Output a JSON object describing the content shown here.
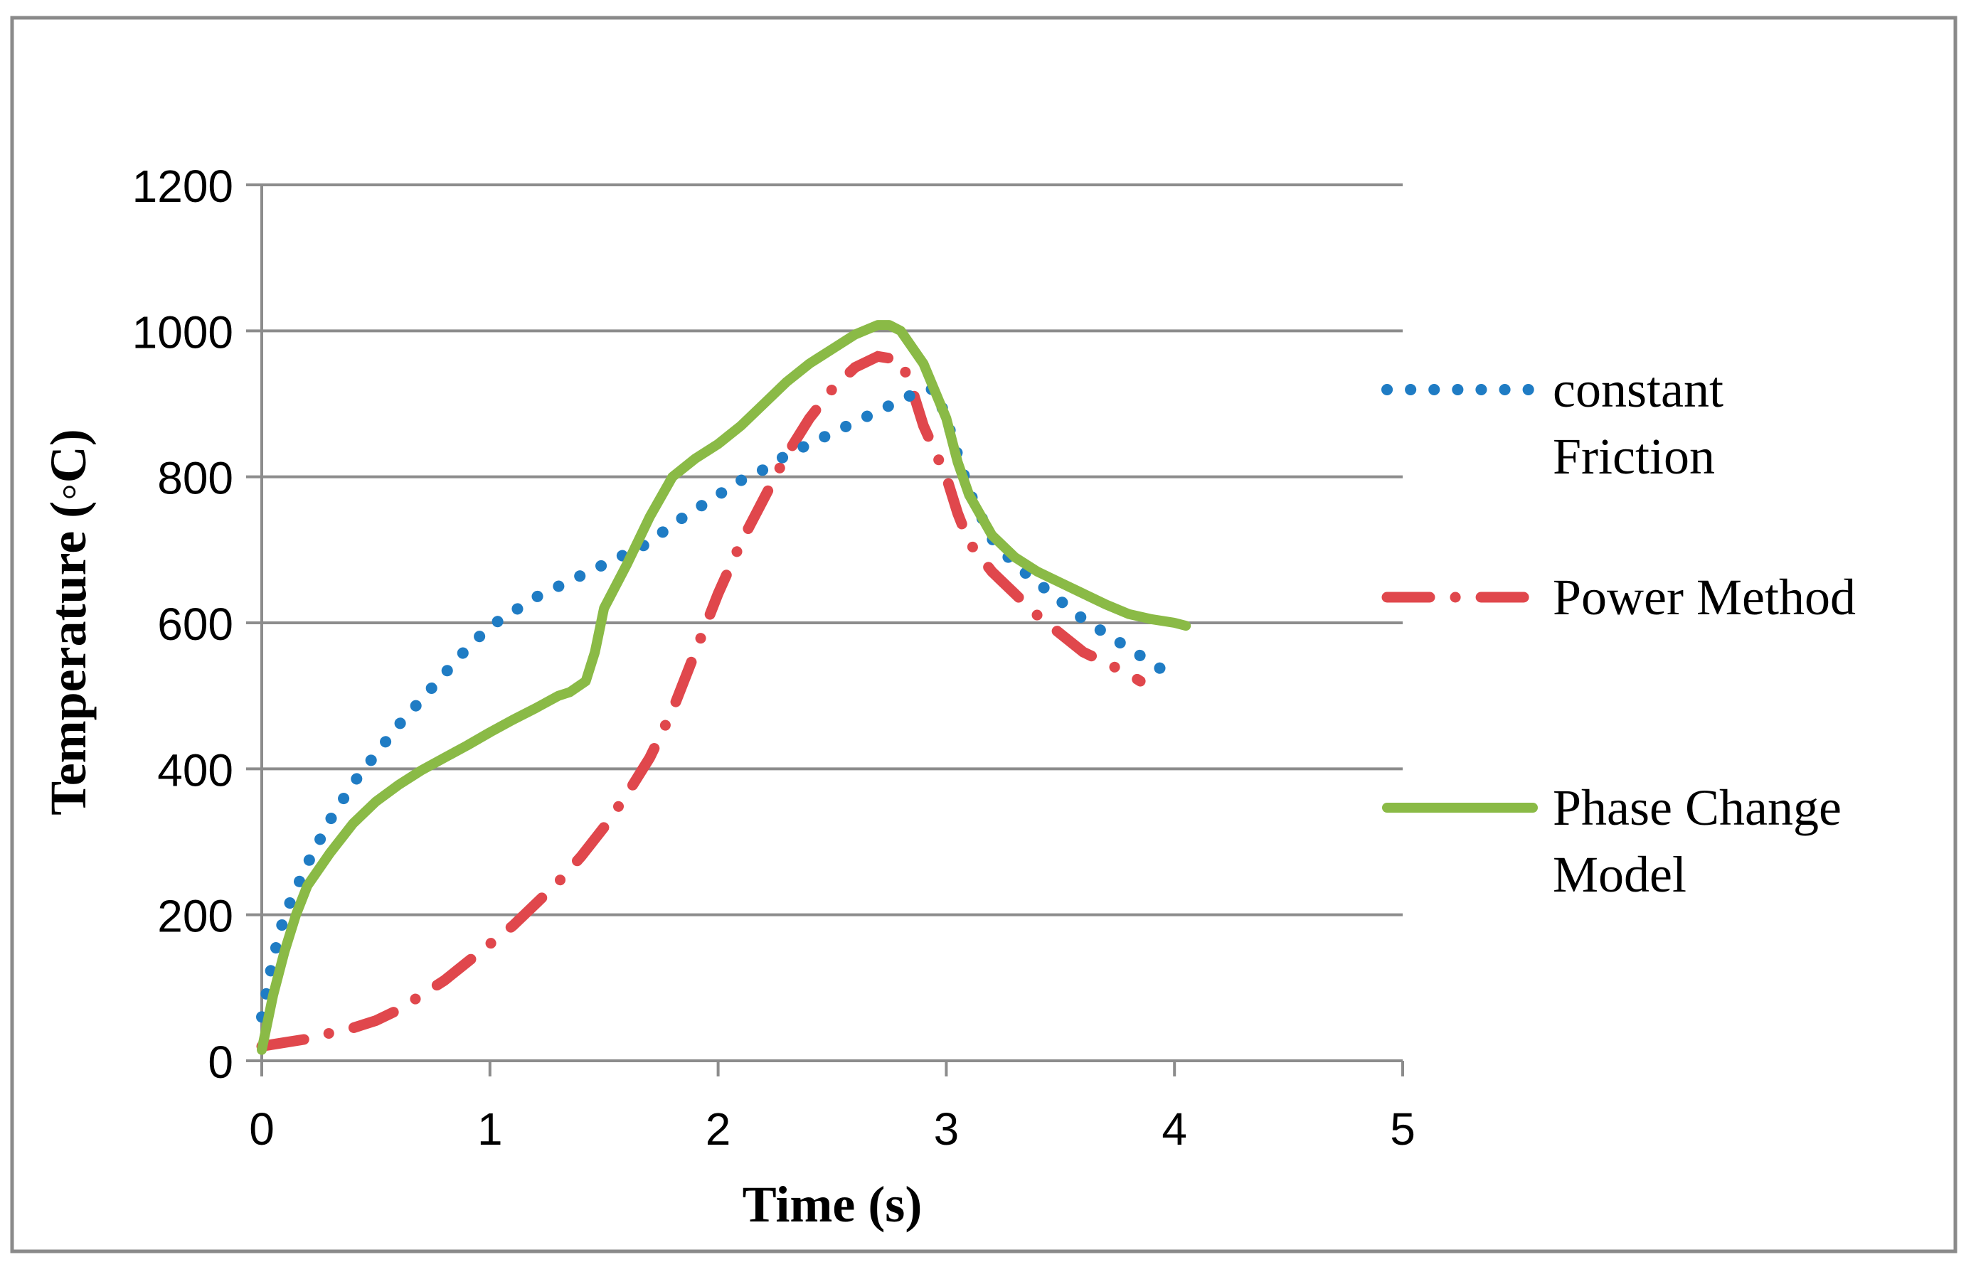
{
  "chart_data": {
    "type": "line",
    "title": "",
    "xlabel": "Time (s)",
    "ylabel": "Temperature (◦C)",
    "xlim": [
      0,
      5
    ],
    "ylim": [
      0,
      1200
    ],
    "xticks": [
      0,
      1,
      2,
      3,
      4,
      5
    ],
    "yticks": [
      0,
      200,
      400,
      600,
      800,
      1000,
      1200
    ],
    "grid": "horizontal",
    "legend_position": "right",
    "series": [
      {
        "name": "constant Friction",
        "legend_lines": [
          "constant",
          "Friction"
        ],
        "color": "#1f7cc4",
        "style": "dotted",
        "points": [
          [
            0,
            60
          ],
          [
            0.05,
            140
          ],
          [
            0.1,
            200
          ],
          [
            0.2,
            270
          ],
          [
            0.3,
            330
          ],
          [
            0.4,
            380
          ],
          [
            0.5,
            420
          ],
          [
            0.6,
            460
          ],
          [
            0.7,
            495
          ],
          [
            0.8,
            530
          ],
          [
            0.9,
            565
          ],
          [
            1.0,
            595
          ],
          [
            1.1,
            615
          ],
          [
            1.2,
            635
          ],
          [
            1.3,
            650
          ],
          [
            1.4,
            665
          ],
          [
            1.5,
            680
          ],
          [
            1.6,
            695
          ],
          [
            1.7,
            710
          ],
          [
            1.8,
            735
          ],
          [
            1.9,
            755
          ],
          [
            2.0,
            775
          ],
          [
            2.1,
            795
          ],
          [
            2.2,
            810
          ],
          [
            2.3,
            830
          ],
          [
            2.4,
            845
          ],
          [
            2.5,
            860
          ],
          [
            2.6,
            875
          ],
          [
            2.7,
            890
          ],
          [
            2.8,
            905
          ],
          [
            2.9,
            920
          ],
          [
            2.95,
            920
          ],
          [
            3.0,
            880
          ],
          [
            3.05,
            830
          ],
          [
            3.1,
            780
          ],
          [
            3.2,
            715
          ],
          [
            3.3,
            680
          ],
          [
            3.4,
            655
          ],
          [
            3.5,
            630
          ],
          [
            3.6,
            605
          ],
          [
            3.7,
            585
          ],
          [
            3.8,
            565
          ],
          [
            3.9,
            545
          ],
          [
            3.95,
            535
          ]
        ]
      },
      {
        "name": "Power Method",
        "legend_lines": [
          "Power Method"
        ],
        "color": "#e0474c",
        "style": "dash-dot",
        "points": [
          [
            0,
            20
          ],
          [
            0.1,
            25
          ],
          [
            0.2,
            30
          ],
          [
            0.3,
            38
          ],
          [
            0.4,
            45
          ],
          [
            0.5,
            55
          ],
          [
            0.6,
            70
          ],
          [
            0.7,
            90
          ],
          [
            0.8,
            110
          ],
          [
            0.9,
            135
          ],
          [
            1.0,
            160
          ],
          [
            1.1,
            185
          ],
          [
            1.2,
            215
          ],
          [
            1.3,
            245
          ],
          [
            1.4,
            280
          ],
          [
            1.5,
            320
          ],
          [
            1.6,
            365
          ],
          [
            1.7,
            415
          ],
          [
            1.8,
            480
          ],
          [
            1.9,
            560
          ],
          [
            2.0,
            640
          ],
          [
            2.1,
            710
          ],
          [
            2.2,
            770
          ],
          [
            2.3,
            830
          ],
          [
            2.4,
            880
          ],
          [
            2.5,
            920
          ],
          [
            2.6,
            950
          ],
          [
            2.7,
            965
          ],
          [
            2.8,
            960
          ],
          [
            2.85,
            920
          ],
          [
            2.9,
            870
          ],
          [
            3.0,
            800
          ],
          [
            3.05,
            750
          ],
          [
            3.1,
            710
          ],
          [
            3.2,
            670
          ],
          [
            3.3,
            640
          ],
          [
            3.4,
            610
          ],
          [
            3.5,
            585
          ],
          [
            3.6,
            560
          ],
          [
            3.7,
            545
          ],
          [
            3.8,
            530
          ],
          [
            3.85,
            520
          ]
        ]
      },
      {
        "name": "Phase Change Model",
        "legend_lines": [
          "Phase Change",
          "Model"
        ],
        "color": "#8aba46",
        "style": "solid",
        "points": [
          [
            0,
            15
          ],
          [
            0.05,
            90
          ],
          [
            0.1,
            150
          ],
          [
            0.15,
            200
          ],
          [
            0.2,
            240
          ],
          [
            0.3,
            285
          ],
          [
            0.4,
            325
          ],
          [
            0.5,
            355
          ],
          [
            0.6,
            378
          ],
          [
            0.7,
            398
          ],
          [
            0.8,
            415
          ],
          [
            0.9,
            432
          ],
          [
            1.0,
            450
          ],
          [
            1.1,
            467
          ],
          [
            1.2,
            483
          ],
          [
            1.3,
            500
          ],
          [
            1.35,
            505
          ],
          [
            1.42,
            520
          ],
          [
            1.46,
            560
          ],
          [
            1.5,
            620
          ],
          [
            1.6,
            680
          ],
          [
            1.7,
            745
          ],
          [
            1.8,
            800
          ],
          [
            1.9,
            825
          ],
          [
            2.0,
            845
          ],
          [
            2.1,
            870
          ],
          [
            2.2,
            900
          ],
          [
            2.3,
            930
          ],
          [
            2.4,
            955
          ],
          [
            2.5,
            975
          ],
          [
            2.6,
            995
          ],
          [
            2.7,
            1008
          ],
          [
            2.75,
            1008
          ],
          [
            2.8,
            1000
          ],
          [
            2.9,
            955
          ],
          [
            3.0,
            880
          ],
          [
            3.05,
            820
          ],
          [
            3.1,
            775
          ],
          [
            3.2,
            720
          ],
          [
            3.3,
            690
          ],
          [
            3.4,
            670
          ],
          [
            3.5,
            655
          ],
          [
            3.6,
            640
          ],
          [
            3.7,
            625
          ],
          [
            3.8,
            612
          ],
          [
            3.9,
            605
          ],
          [
            4.0,
            600
          ],
          [
            4.05,
            596
          ]
        ]
      }
    ]
  }
}
